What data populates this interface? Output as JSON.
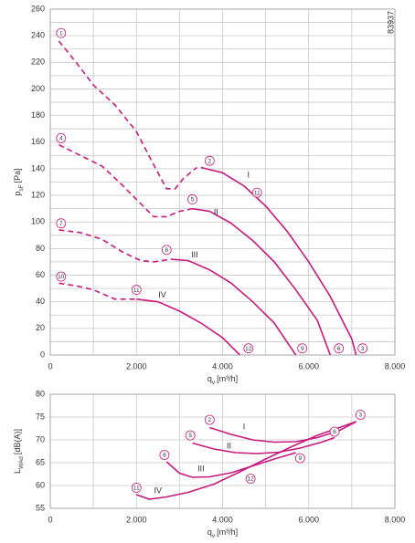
{
  "chart_data": [
    {
      "type": "line",
      "id": "83937",
      "y_label": "p",
      "y_label_sub": "sF",
      "y_label_unit": "[Pa]",
      "x_label": "q",
      "x_label_sub": "v",
      "x_label_unit": "[m³/h]",
      "xlim": [
        0,
        8000
      ],
      "ylim": [
        0,
        260
      ],
      "xticks": [
        0,
        {
          "value": 2000,
          "label": "2.000"
        },
        {
          "value": 4000,
          "label": "4.000"
        },
        {
          "value": 6000,
          "label": "6.000"
        },
        {
          "value": 8000,
          "label": "8.000"
        }
      ],
      "xgrid": [
        1000,
        3000,
        5000,
        7000
      ],
      "yticks": [
        0,
        20,
        40,
        60,
        80,
        100,
        120,
        140,
        160,
        180,
        200,
        220,
        240,
        260
      ],
      "ygrid": [
        10,
        30,
        50,
        70,
        90,
        110,
        130,
        150,
        170,
        190,
        210,
        230,
        250
      ],
      "grid": true,
      "series": [
        {
          "color": "#c8197e",
          "dashed": true,
          "x": [
            200,
            600,
            1000,
            1500,
            2000,
            2400,
            2700,
            2900,
            3100,
            3400
          ],
          "values": [
            236,
            220,
            203,
            188,
            168,
            143,
            125,
            125,
            133,
            141
          ]
        },
        {
          "color": "#c8197e",
          "dashed": false,
          "x": [
            3500,
            4000,
            4500,
            5000,
            5500,
            6000,
            6500,
            7000,
            7100
          ],
          "values": [
            141,
            137,
            127,
            112,
            93,
            70,
            44,
            12,
            0
          ]
        },
        {
          "color": "#c8197e",
          "dashed": true,
          "x": [
            200,
            700,
            1200,
            1600,
            2000,
            2400,
            2700,
            3000,
            3300
          ],
          "values": [
            158,
            150,
            142,
            130,
            117,
            104,
            104,
            108,
            110
          ]
        },
        {
          "color": "#c8197e",
          "dashed": false,
          "x": [
            3300,
            3700,
            4200,
            4700,
            5200,
            5700,
            6200,
            6500
          ],
          "values": [
            110,
            108,
            99,
            86,
            70,
            49,
            26,
            0
          ]
        },
        {
          "color": "#c8197e",
          "dashed": true,
          "x": [
            200,
            700,
            1200,
            1700,
            2100,
            2400,
            2800
          ],
          "values": [
            94,
            92,
            87,
            77,
            71,
            70,
            72
          ]
        },
        {
          "color": "#c8197e",
          "dashed": false,
          "x": [
            2800,
            3200,
            3700,
            4200,
            4700,
            5200,
            5700
          ],
          "values": [
            72,
            71,
            64,
            54,
            40,
            24,
            0
          ]
        },
        {
          "color": "#c8197e",
          "dashed": true,
          "x": [
            200,
            600,
            1000,
            1500,
            2000
          ],
          "values": [
            54,
            52,
            49,
            42,
            42
          ]
        },
        {
          "color": "#c8197e",
          "dashed": false,
          "x": [
            2000,
            2500,
            3000,
            3500,
            4000,
            4400
          ],
          "values": [
            42,
            40,
            33,
            24,
            13,
            0
          ]
        }
      ],
      "curve_labels": [
        {
          "text": "I",
          "x": 4600,
          "y": 135
        },
        {
          "text": "II",
          "x": 3850,
          "y": 107
        },
        {
          "text": "III",
          "x": 3350,
          "y": 75
        },
        {
          "text": "IV",
          "x": 2600,
          "y": 45
        }
      ],
      "markers": [
        {
          "label": "1",
          "x": 250,
          "y": 242
        },
        {
          "label": "2",
          "x": 3700,
          "y": 146
        },
        {
          "label": "3",
          "x": 7250,
          "y": 5
        },
        {
          "label": "4",
          "x": 250,
          "y": 163
        },
        {
          "label": "5",
          "x": 3300,
          "y": 117
        },
        {
          "label": "6",
          "x": 6700,
          "y": 5
        },
        {
          "label": "7",
          "x": 250,
          "y": 99
        },
        {
          "label": "8",
          "x": 2700,
          "y": 79
        },
        {
          "label": "9",
          "x": 5850,
          "y": 5
        },
        {
          "label": "10",
          "x": 250,
          "y": 59
        },
        {
          "label": "11",
          "x": 2000,
          "y": 49
        },
        {
          "label": "12",
          "x": 4600,
          "y": 5
        },
        {
          "label": "11",
          "x": 4800,
          "y": 122
        }
      ]
    },
    {
      "type": "line",
      "y_label": "L",
      "y_label_sub": "WAd",
      "y_label_unit": "[dB(A)]",
      "x_label": "q",
      "x_label_sub": "v",
      "x_label_unit": "[m³/h]",
      "xlim": [
        0,
        8000
      ],
      "ylim": [
        55,
        80
      ],
      "xticks": [
        0,
        {
          "value": 2000,
          "label": "2.000"
        },
        {
          "value": 4000,
          "label": "4.000"
        },
        {
          "value": 6000,
          "label": "6.000"
        },
        {
          "value": 8000,
          "label": "8.000"
        }
      ],
      "xgrid": [
        1000,
        3000,
        5000,
        7000
      ],
      "yticks": [
        55,
        60,
        65,
        70,
        75,
        80
      ],
      "ygrid": [],
      "grid": true,
      "series": [
        {
          "color": "#c8197e",
          "dashed": false,
          "x": [
            3700,
            4200,
            4700,
            5200,
            5700,
            6200,
            6700,
            7100
          ],
          "values": [
            72.7,
            71.2,
            70,
            69.5,
            69.6,
            70.5,
            72,
            74
          ]
        },
        {
          "color": "#c8197e",
          "dashed": false,
          "x": [
            3300,
            3800,
            4300,
            4800,
            5300,
            5800,
            6300,
            6600
          ],
          "values": [
            69.3,
            68,
            67.2,
            67,
            67.3,
            68.2,
            69.5,
            70.5
          ]
        },
        {
          "color": "#c8197e",
          "dashed": false,
          "x": [
            2700,
            3000,
            3300,
            3700,
            4200,
            4700,
            5200,
            5700
          ],
          "values": [
            65.2,
            62.7,
            61.8,
            61.9,
            62.8,
            64.3,
            65.8,
            67.2
          ]
        },
        {
          "color": "#c8197e",
          "dashed": false,
          "x": [
            2000,
            2300,
            2700,
            3200,
            3800,
            4400,
            5000,
            5600,
            6200,
            7100
          ],
          "values": [
            58,
            57,
            57.5,
            58.5,
            60.3,
            63,
            65.8,
            68.5,
            71,
            74
          ]
        }
      ],
      "curve_labels": [
        {
          "text": "I",
          "x": 4500,
          "y": 72.8
        },
        {
          "text": "II",
          "x": 4150,
          "y": 68.6
        },
        {
          "text": "III",
          "x": 3500,
          "y": 63.6
        },
        {
          "text": "IV",
          "x": 2500,
          "y": 58.8
        }
      ],
      "markers": [
        {
          "label": "2",
          "x": 3700,
          "y": 74.4
        },
        {
          "label": "3",
          "x": 7200,
          "y": 75.5
        },
        {
          "label": "5",
          "x": 3250,
          "y": 71
        },
        {
          "label": "6",
          "x": 6600,
          "y": 71.8
        },
        {
          "label": "8",
          "x": 2650,
          "y": 66.7
        },
        {
          "label": "9",
          "x": 5800,
          "y": 66
        },
        {
          "label": "11",
          "x": 2000,
          "y": 59.5
        },
        {
          "label": "12",
          "x": 4650,
          "y": 61.5
        }
      ]
    }
  ]
}
